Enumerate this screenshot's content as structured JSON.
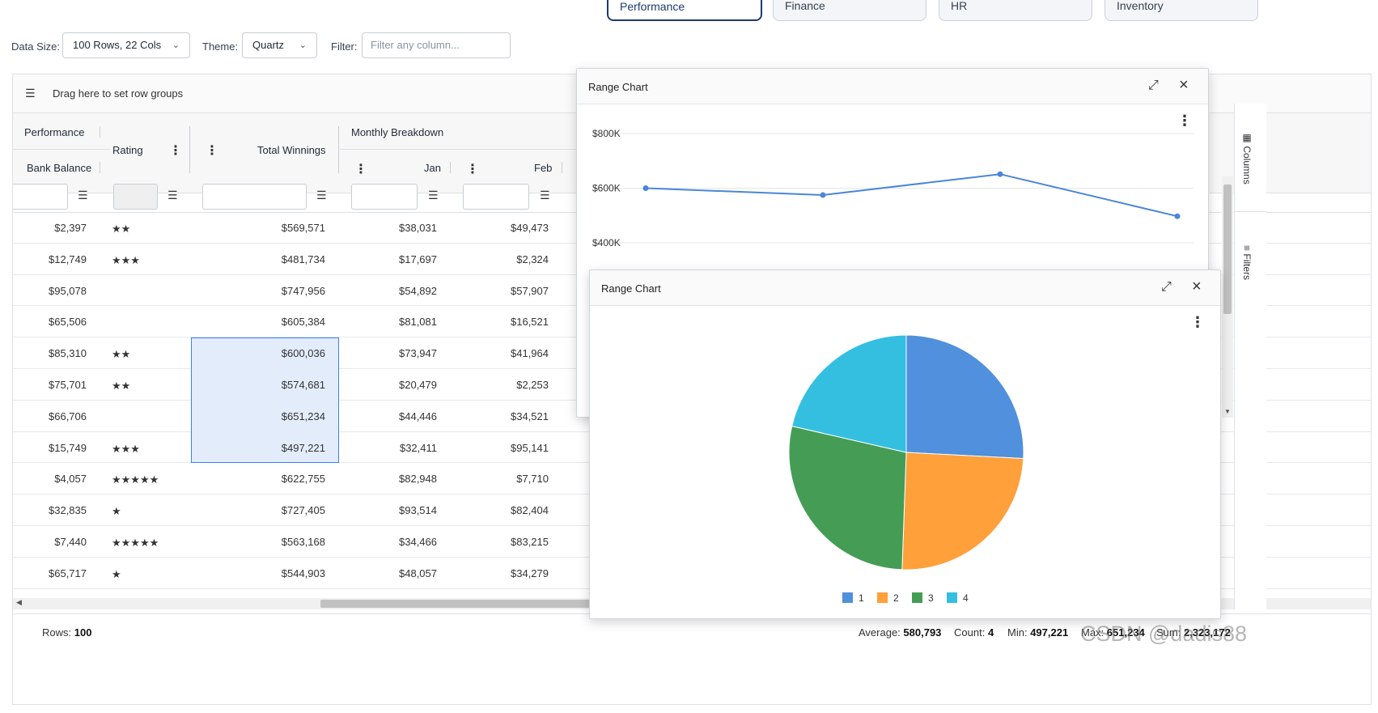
{
  "demo_tabs": [
    "Performance",
    "Finance",
    "HR",
    "Inventory"
  ],
  "toolbar": {
    "data_size_label": "Data Size:",
    "data_size_value": "100 Rows, 22 Cols",
    "theme_label": "Theme:",
    "theme_value": "Quartz",
    "filter_label": "Filter:",
    "filter_placeholder": "Filter any column..."
  },
  "grid": {
    "row_group_hint": "Drag here to set row groups",
    "headers": {
      "performance_group": "Performance",
      "bank_balance": "Bank Balance",
      "rating": "Rating",
      "total_winnings": "Total Winnings",
      "monthly_group": "Monthly Breakdown",
      "jan": "Jan",
      "feb": "Feb"
    },
    "rows": [
      {
        "bank": "$2,397",
        "rating": "★★",
        "total": "$569,571",
        "jan": "$38,031",
        "feb": "$49,473"
      },
      {
        "bank": "$12,749",
        "rating": "★★★",
        "total": "$481,734",
        "jan": "$17,697",
        "feb": "$2,324"
      },
      {
        "bank": "$95,078",
        "rating": "",
        "total": "$747,956",
        "jan": "$54,892",
        "feb": "$57,907"
      },
      {
        "bank": "$65,506",
        "rating": "",
        "total": "$605,384",
        "jan": "$81,081",
        "feb": "$16,521"
      },
      {
        "bank": "$85,310",
        "rating": "★★",
        "total": "$600,036",
        "jan": "$73,947",
        "feb": "$41,964"
      },
      {
        "bank": "$75,701",
        "rating": "★★",
        "total": "$574,681",
        "jan": "$20,479",
        "feb": "$2,253"
      },
      {
        "bank": "$66,706",
        "rating": "",
        "total": "$651,234",
        "jan": "$44,446",
        "feb": "$34,521"
      },
      {
        "bank": "$15,749",
        "rating": "★★★",
        "total": "$497,221",
        "jan": "$32,411",
        "feb": "$95,141"
      },
      {
        "bank": "$4,057",
        "rating": "★★★★★",
        "total": "$622,755",
        "jan": "$82,948",
        "feb": "$7,710"
      },
      {
        "bank": "$32,835",
        "rating": "★",
        "total": "$727,405",
        "jan": "$93,514",
        "feb": "$82,404"
      },
      {
        "bank": "$7,440",
        "rating": "★★★★★",
        "total": "$563,168",
        "jan": "$34,466",
        "feb": "$83,215"
      },
      {
        "bank": "$65,717",
        "rating": "★",
        "total": "$544,903",
        "jan": "$48,057",
        "feb": "$34,279"
      }
    ],
    "selected_rows": [
      4,
      5,
      6,
      7
    ],
    "status": {
      "rows_label": "Rows:",
      "rows_value": "100",
      "avg_label": "Average:",
      "avg_value": "580,793",
      "count_label": "Count:",
      "count_value": "4",
      "min_label": "Min:",
      "min_value": "497,221",
      "max_label": "Max:",
      "max_value": "651,234",
      "sum_label": "Sum:",
      "sum_value": "2,323,172"
    },
    "side_panel": {
      "columns": "Columns",
      "filters": "Filters"
    }
  },
  "line_chart_window": {
    "title": "Range Chart"
  },
  "pie_chart_window": {
    "title": "Range Chart"
  },
  "chart_data": [
    {
      "type": "line",
      "x": [
        1,
        2,
        3,
        4
      ],
      "y": [
        600036,
        574681,
        651234,
        497221
      ],
      "ylabel": "",
      "yticks": [
        "$400K",
        "$600K",
        "$800K"
      ],
      "ylim": [
        400000,
        800000
      ],
      "grid": true,
      "color": "#4a86d9"
    },
    {
      "type": "pie",
      "labels": [
        "1",
        "2",
        "3",
        "4"
      ],
      "values": [
        600036,
        574681,
        651234,
        497221
      ],
      "colors": [
        "#5090dc",
        "#ffa03a",
        "#459d55",
        "#34bfe1"
      ],
      "legend": "bottom"
    }
  ],
  "watermark": "CSDN @dadis88"
}
